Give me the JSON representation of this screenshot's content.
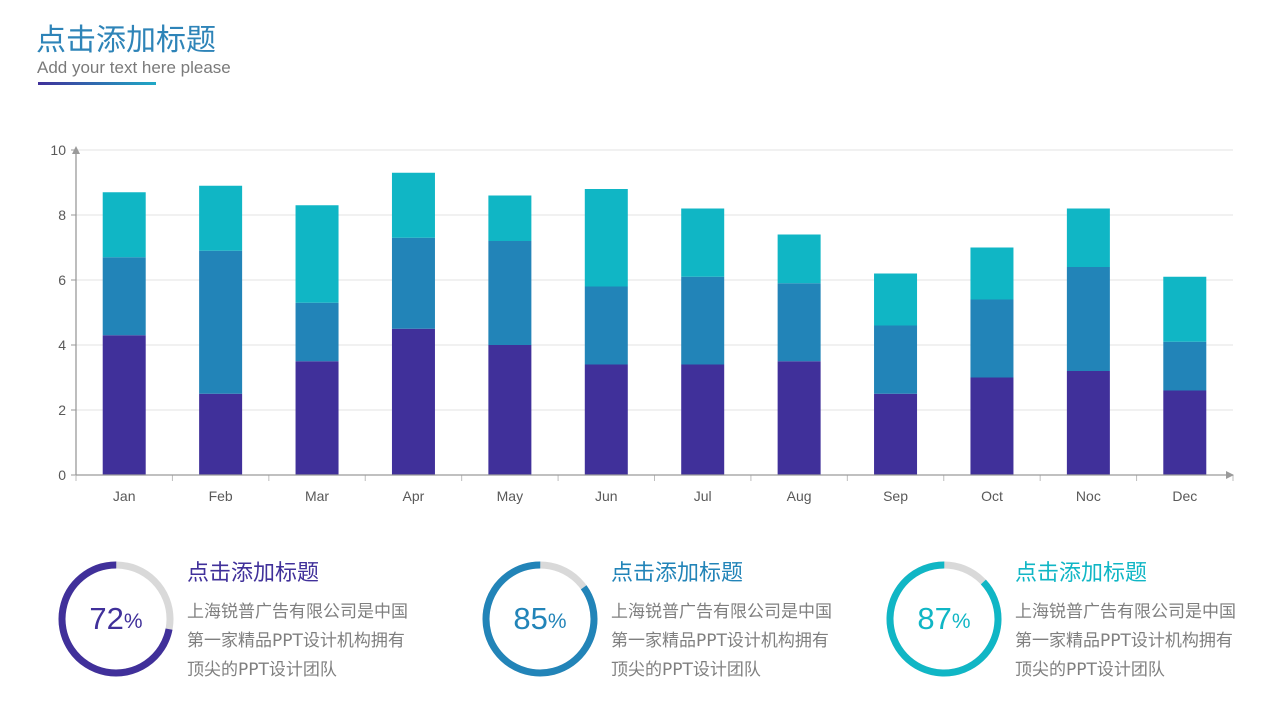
{
  "header": {
    "title": "点击添加标题",
    "subtitle": "Add your text here please"
  },
  "colors": {
    "series1": "#40309a",
    "series2": "#2284b8",
    "series3": "#10b6c5",
    "ring_track": "#d9d9d9",
    "title": "#2e84b8"
  },
  "chart_data": {
    "type": "bar",
    "stacked": true,
    "categories": [
      "Jan",
      "Feb",
      "Mar",
      "Apr",
      "May",
      "Jun",
      "Jul",
      "Aug",
      "Sep",
      "Oct",
      "Noc",
      "Dec"
    ],
    "series": [
      {
        "values": [
          4.3,
          2.5,
          3.5,
          4.5,
          4.0,
          3.4,
          3.4,
          3.5,
          2.5,
          3.0,
          3.2,
          2.6
        ]
      },
      {
        "values": [
          2.4,
          4.4,
          1.8,
          2.8,
          3.2,
          2.4,
          2.7,
          2.4,
          2.1,
          2.4,
          3.2,
          1.5
        ]
      },
      {
        "values": [
          2.0,
          2.0,
          3.0,
          2.0,
          1.4,
          3.0,
          2.1,
          1.5,
          1.6,
          1.6,
          1.8,
          2.0
        ]
      }
    ],
    "ylim": [
      0,
      10
    ],
    "yticks": [
      0,
      2,
      4,
      6,
      8,
      10
    ],
    "grid": true,
    "legend": "none"
  },
  "kpis": [
    {
      "value": 72,
      "unit": "%",
      "percent": 0.72,
      "title": "点击添加标题",
      "lines": [
        "上海锐普广告有限公司是中国",
        "第一家精品PPT设计机构拥有",
        "顶尖的PPT设计团队"
      ],
      "color": "#40309a"
    },
    {
      "value": 85,
      "unit": "%",
      "percent": 0.85,
      "title": "点击添加标题",
      "lines": [
        "上海锐普广告有限公司是中国",
        "第一家精品PPT设计机构拥有",
        "顶尖的PPT设计团队"
      ],
      "color": "#2284b8"
    },
    {
      "value": 87,
      "unit": "%",
      "percent": 0.87,
      "title": "点击添加标题",
      "lines": [
        "上海锐普广告有限公司是中国",
        "第一家精品PPT设计机构拥有",
        "顶尖的PPT设计团队"
      ],
      "color": "#10b6c5"
    }
  ]
}
